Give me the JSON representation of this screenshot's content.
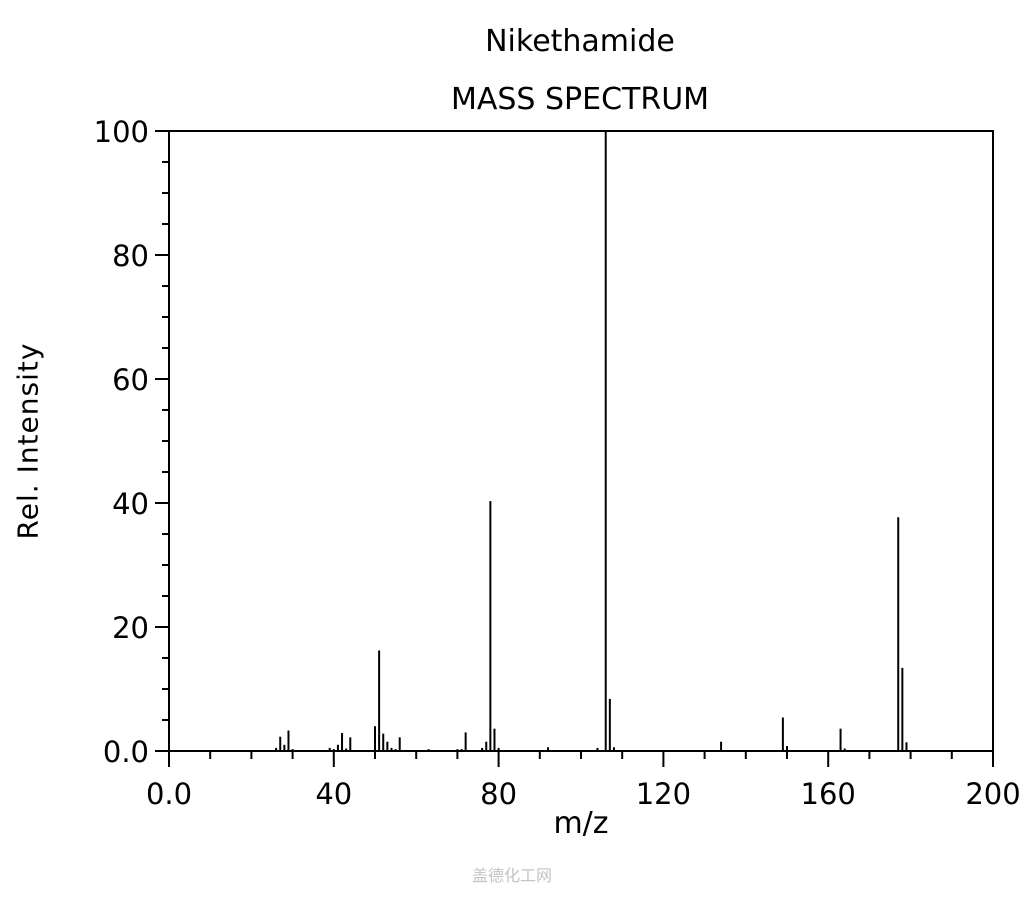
{
  "chart_data": {
    "type": "bar",
    "title": "Nikethamide",
    "subtitle": "MASS SPECTRUM",
    "xlabel": "m/z",
    "ylabel": "Rel. Intensity",
    "xlim": [
      0,
      200
    ],
    "ylim": [
      0,
      100
    ],
    "xticks": [
      "0.0",
      "40",
      "80",
      "120",
      "160",
      "200"
    ],
    "yticks": [
      "0.0",
      "20",
      "40",
      "60",
      "80",
      "100"
    ],
    "grid": false,
    "series": [
      {
        "x": [
          26,
          27,
          28,
          29,
          30,
          39,
          40,
          41,
          42,
          43,
          44,
          50,
          51,
          52,
          53,
          54,
          55,
          56,
          63,
          70,
          71,
          72,
          76,
          77,
          78,
          79,
          80,
          92,
          104,
          106,
          107,
          108,
          134,
          149,
          150,
          163,
          164,
          177,
          178,
          179
        ],
        "values": [
          0.5,
          2.3,
          1.0,
          3.3,
          0.3,
          0.5,
          0.3,
          1.0,
          2.9,
          0.4,
          2.2,
          4.0,
          16.2,
          2.8,
          1.5,
          0.5,
          0.3,
          2.2,
          0.3,
          0.3,
          0.3,
          3.0,
          0.5,
          1.5,
          40.3,
          3.6,
          0.5,
          0.6,
          0.5,
          100,
          8.4,
          0.6,
          1.5,
          5.4,
          0.8,
          3.6,
          0.4,
          37.7,
          13.4,
          1.4
        ]
      }
    ]
  },
  "watermark": "盖德化工网"
}
